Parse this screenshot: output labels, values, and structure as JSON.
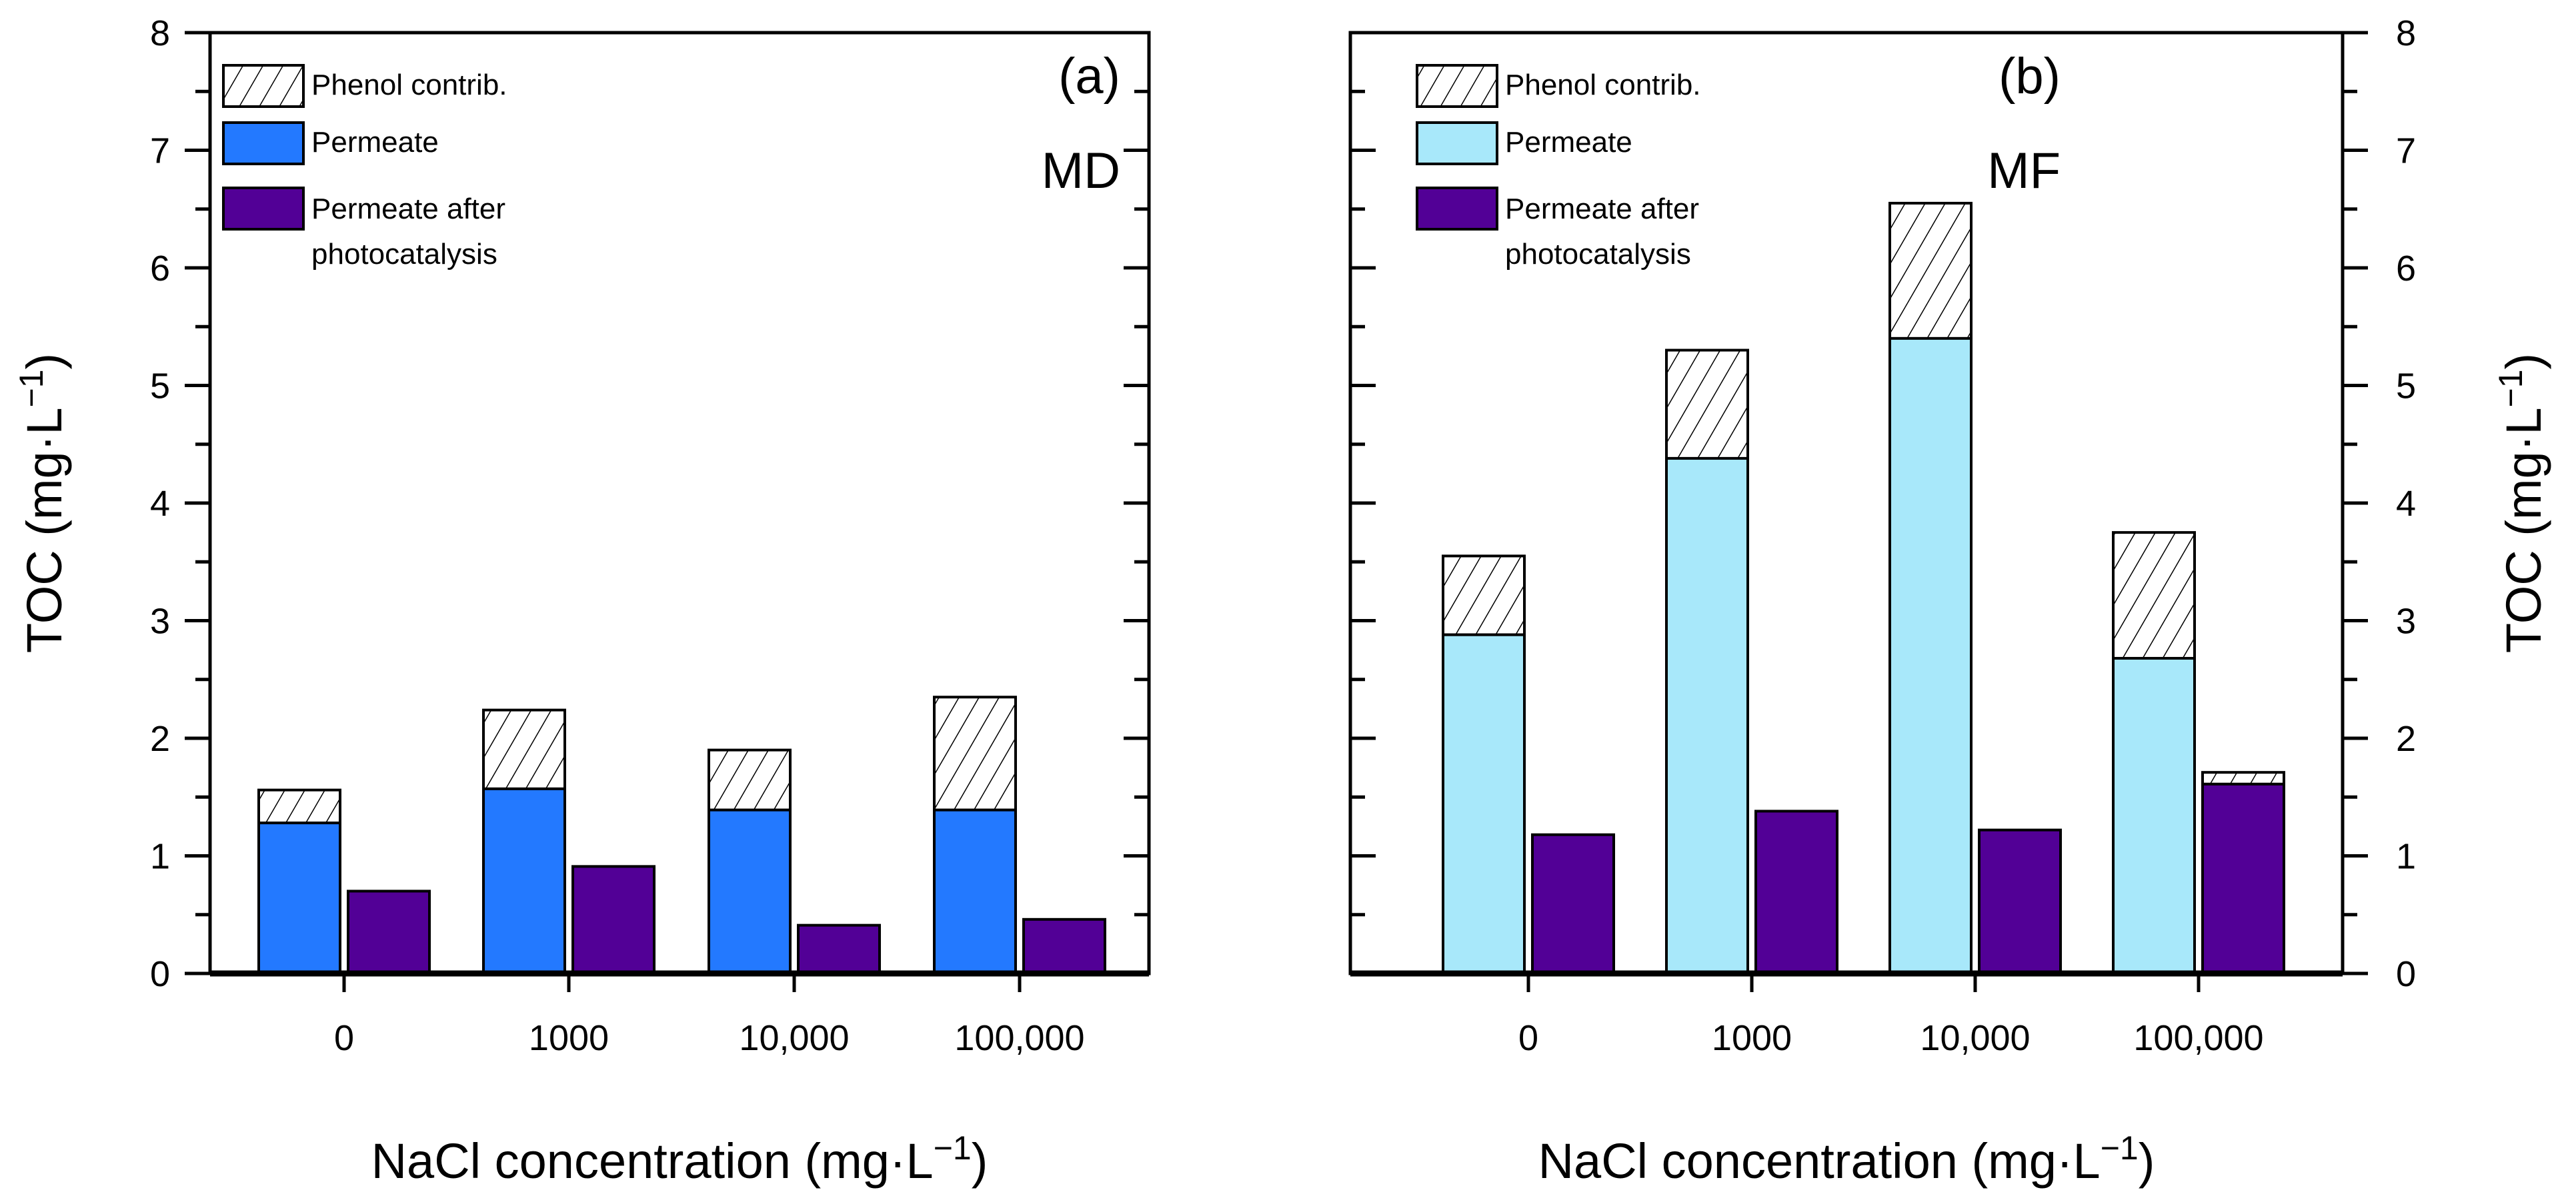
{
  "colors": {
    "permeate_md": "#2379FF",
    "permeate_mf": "#A8E8FA",
    "photocatalysis": "#520096",
    "axis": "#000000"
  },
  "chart_data": [
    {
      "type": "bar",
      "stacked": true,
      "panel_label": "(a)",
      "process": "MD",
      "categories": [
        "0",
        "1000",
        "10,000",
        "100,000"
      ],
      "xlabel": "NaCl concentration (mg·L",
      "xlabel_sup": "−1",
      "xlabel_end": ")",
      "ylabel": "TOC (mg·L",
      "ylabel_sup": "−1",
      "ylabel_end": ")",
      "ylim": [
        0,
        8
      ],
      "yticks": [
        "0",
        "1",
        "2",
        "3",
        "4",
        "5",
        "6",
        "7",
        "8"
      ],
      "legend": [
        "Phenol contrib.",
        "Permeate",
        "Permeate after",
        "photocatalysis"
      ],
      "legend_position": "top-left",
      "series": [
        {
          "name": "Permeate",
          "values": [
            1.28,
            1.57,
            1.39,
            1.39
          ],
          "phenol_total": [
            1.56,
            2.24,
            1.9,
            2.35
          ]
        },
        {
          "name": "Permeate after photocatalysis",
          "values": [
            0.7,
            0.91,
            0.41,
            0.46
          ],
          "phenol_total": [
            null,
            null,
            null,
            null
          ]
        }
      ]
    },
    {
      "type": "bar",
      "stacked": true,
      "panel_label": "(b)",
      "process": "MF",
      "categories": [
        "0",
        "1000",
        "10,000",
        "100,000"
      ],
      "xlabel": "NaCl concentration (mg·L",
      "xlabel_sup": "−1",
      "xlabel_end": ")",
      "ylabel": "TOC (mg·L",
      "ylabel_sup": "−1",
      "ylabel_end": ")",
      "ylim": [
        0,
        8
      ],
      "yticks": [
        "0",
        "1",
        "2",
        "3",
        "4",
        "5",
        "6",
        "7",
        "8"
      ],
      "legend": [
        "Phenol contrib.",
        "Permeate",
        "Permeate after",
        "photocatalysis"
      ],
      "legend_position": "top-left",
      "series": [
        {
          "name": "Permeate",
          "values": [
            2.88,
            4.38,
            5.4,
            2.68
          ],
          "phenol_total": [
            3.55,
            5.3,
            6.55,
            3.75
          ]
        },
        {
          "name": "Permeate after photocatalysis",
          "values": [
            1.18,
            1.38,
            1.22,
            1.61
          ],
          "phenol_total": [
            null,
            null,
            null,
            1.71
          ]
        }
      ]
    }
  ]
}
